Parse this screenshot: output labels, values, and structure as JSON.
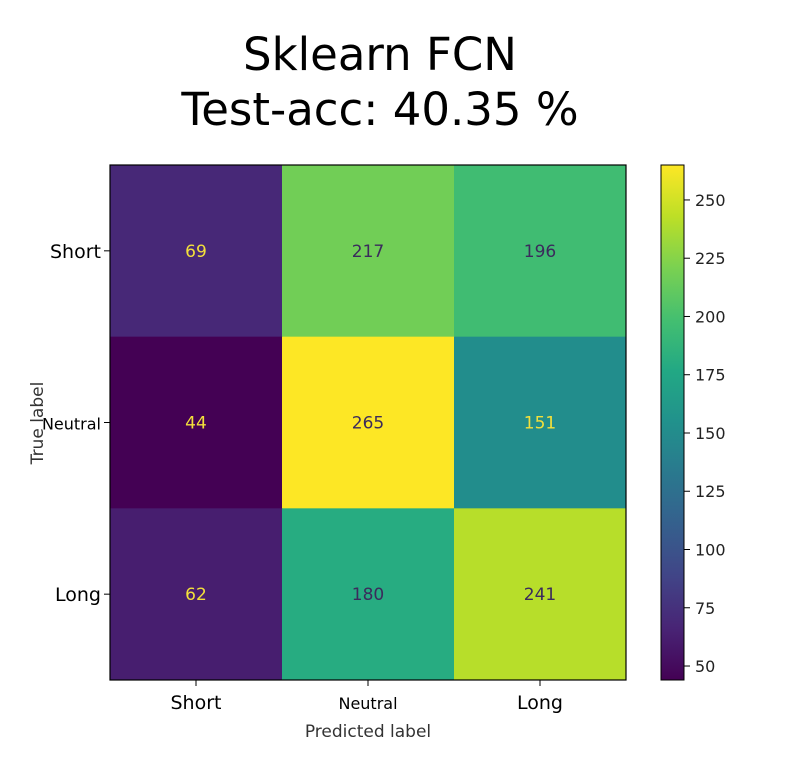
{
  "chart_data": {
    "type": "heatmap",
    "title_line1": "Sklearn FCN",
    "title_line2": "Test-acc: 40.35 %",
    "xlabel": "Predicted label",
    "ylabel": "True label",
    "x_categories": [
      "Short",
      "Neutral",
      "Long"
    ],
    "y_categories": [
      "Short",
      "Neutral",
      "Long"
    ],
    "matrix": [
      [
        69,
        217,
        196
      ],
      [
        44,
        265,
        151
      ],
      [
        62,
        180,
        241
      ]
    ],
    "colormap": "viridis",
    "colorbar": {
      "min": 44,
      "max": 265,
      "ticks": [
        50,
        75,
        100,
        125,
        150,
        175,
        200,
        225,
        250
      ]
    },
    "text_color_light": "#f3e03b",
    "text_color_dark": "#3b2b5c"
  }
}
